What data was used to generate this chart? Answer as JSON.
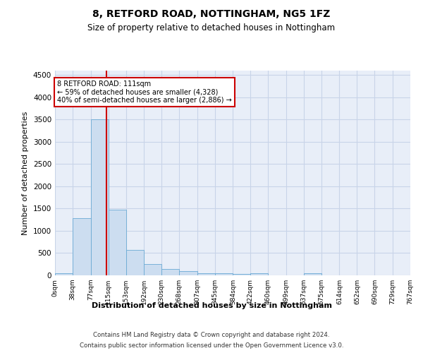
{
  "title": "8, RETFORD ROAD, NOTTINGHAM, NG5 1FZ",
  "subtitle": "Size of property relative to detached houses in Nottingham",
  "xlabel": "Distribution of detached houses by size in Nottingham",
  "ylabel": "Number of detached properties",
  "bar_color": "#ccddf0",
  "bar_edge_color": "#6aaad4",
  "grid_color": "#c8d4e8",
  "background_color": "#e8eef8",
  "marker_value": 111,
  "marker_line_color": "#cc0000",
  "annotation_box_color": "#ffffff",
  "annotation_border_color": "#cc0000",
  "annotation_text_line1": "8 RETFORD ROAD: 111sqm",
  "annotation_text_line2": "← 59% of detached houses are smaller (4,328)",
  "annotation_text_line3": "40% of semi-detached houses are larger (2,886) →",
  "bin_labels": [
    "0sqm",
    "38sqm",
    "77sqm",
    "115sqm",
    "153sqm",
    "192sqm",
    "230sqm",
    "268sqm",
    "307sqm",
    "345sqm",
    "384sqm",
    "422sqm",
    "460sqm",
    "499sqm",
    "537sqm",
    "575sqm",
    "614sqm",
    "652sqm",
    "690sqm",
    "729sqm",
    "767sqm"
  ],
  "bin_edges": [
    0,
    38,
    77,
    115,
    153,
    192,
    230,
    268,
    307,
    345,
    384,
    422,
    460,
    499,
    537,
    575,
    614,
    652,
    690,
    729,
    767
  ],
  "bar_heights": [
    50,
    1280,
    3500,
    1480,
    570,
    250,
    140,
    90,
    55,
    40,
    35,
    50,
    0,
    0,
    55,
    0,
    0,
    0,
    0,
    0
  ],
  "ylim": [
    0,
    4600
  ],
  "yticks": [
    0,
    500,
    1000,
    1500,
    2000,
    2500,
    3000,
    3500,
    4000,
    4500
  ],
  "footer_line1": "Contains HM Land Registry data © Crown copyright and database right 2024.",
  "footer_line2": "Contains public sector information licensed under the Open Government Licence v3.0."
}
